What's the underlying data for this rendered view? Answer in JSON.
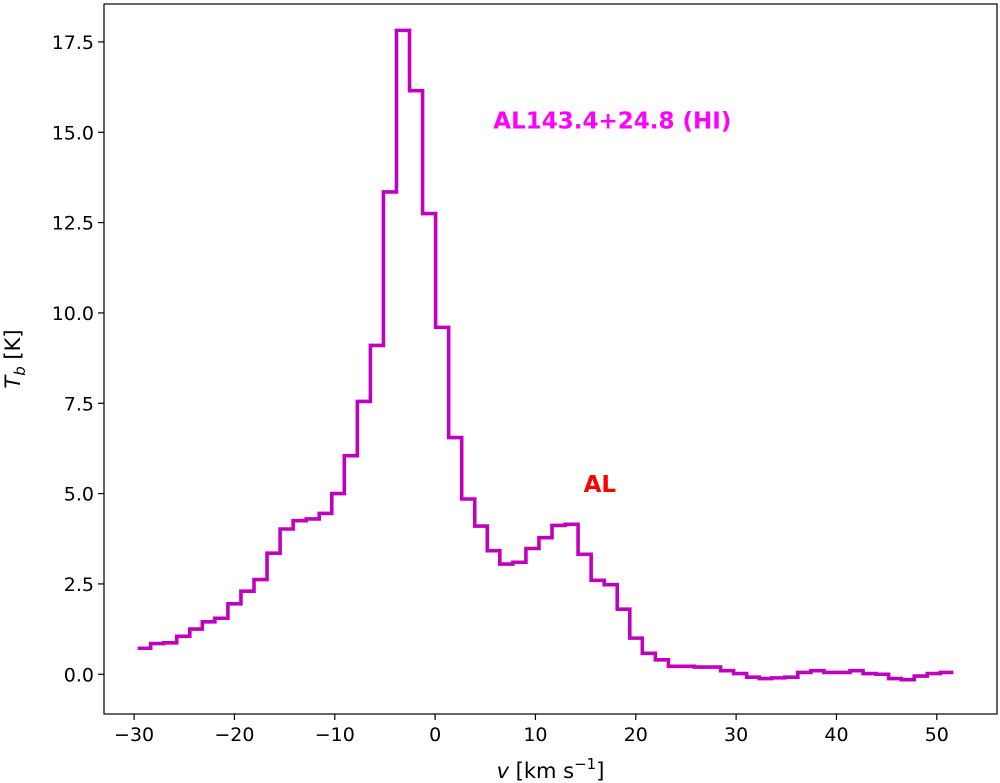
{
  "chart_data": {
    "type": "line",
    "drawstyle": "steps-mid",
    "x_range": [
      -33,
      56
    ],
    "y_range": [
      -1.1,
      18.55
    ],
    "x_ticks": [
      -30,
      -20,
      -10,
      0,
      10,
      20,
      30,
      40,
      50
    ],
    "x_tick_labels": [
      "−30",
      "−20",
      "−10",
      "0",
      "10",
      "20",
      "30",
      "40",
      "50"
    ],
    "y_ticks": [
      0.0,
      2.5,
      5.0,
      7.5,
      10.0,
      12.5,
      15.0,
      17.5
    ],
    "y_tick_labels": [
      "0.0",
      "2.5",
      "5.0",
      "7.5",
      "10.0",
      "12.5",
      "15.0",
      "17.5"
    ],
    "xlabel": {
      "var": "v",
      "unit_pre": " [km s",
      "exp": "−1",
      "unit_post": "]"
    },
    "ylabel": {
      "var": "T",
      "sub": "b",
      "unit": " [K]"
    },
    "grid": false,
    "series": [
      {
        "color": "#bf00bf",
        "x": [
          -29.0,
          -27.7,
          -26.4,
          -25.1,
          -23.8,
          -22.6,
          -21.3,
          -20.0,
          -18.7,
          -17.4,
          -16.1,
          -14.8,
          -13.5,
          -12.2,
          -10.9,
          -9.7,
          -8.4,
          -7.1,
          -5.8,
          -4.5,
          -3.2,
          -1.9,
          -0.6,
          0.7,
          2.0,
          3.3,
          4.6,
          5.8,
          7.1,
          8.4,
          9.7,
          11.0,
          12.3,
          13.6,
          14.9,
          16.2,
          17.5,
          18.8,
          20.0,
          21.3,
          22.6,
          23.9,
          25.2,
          26.5,
          27.8,
          29.1,
          30.4,
          31.7,
          32.9,
          34.2,
          35.5,
          36.8,
          38.1,
          39.4,
          40.7,
          42.0,
          43.3,
          44.6,
          45.8,
          47.1,
          48.4,
          49.7,
          51.0
        ],
        "y": [
          0.72,
          0.85,
          0.87,
          1.05,
          1.25,
          1.45,
          1.55,
          1.95,
          2.3,
          2.62,
          3.35,
          4.02,
          4.25,
          4.3,
          4.45,
          5.0,
          6.05,
          7.55,
          9.1,
          13.35,
          17.82,
          16.15,
          12.75,
          9.6,
          6.55,
          4.85,
          4.1,
          3.42,
          3.05,
          3.1,
          3.48,
          3.78,
          4.12,
          4.15,
          3.32,
          2.6,
          2.48,
          1.8,
          1.0,
          0.58,
          0.4,
          0.22,
          0.22,
          0.2,
          0.2,
          0.1,
          0.02,
          -0.08,
          -0.12,
          -0.1,
          -0.08,
          0.05,
          0.1,
          0.05,
          0.05,
          0.1,
          0.02,
          0.0,
          -0.12,
          -0.15,
          -0.05,
          0.02,
          0.05
        ]
      }
    ],
    "annotations": [
      {
        "text": "AL143.4+24.8 (HI)",
        "x": 5.8,
        "y": 15.1,
        "color": "#ff00ff",
        "size": 23
      },
      {
        "text": "AL",
        "x": 14.8,
        "y": 5.05,
        "color": "#ff0000",
        "size": 23
      }
    ]
  }
}
